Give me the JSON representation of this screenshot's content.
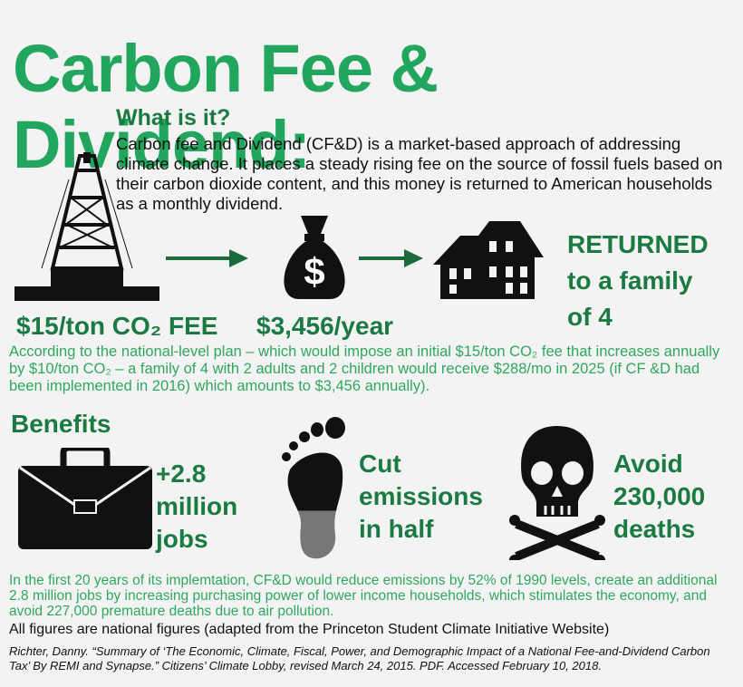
{
  "title": "Carbon Fee & Dividend:",
  "intro": {
    "heading": "What is it?",
    "text": "Carbon fee and Dividend (CF&D) is a market-based approach of addressing climate change. It places a steady rising fee on the source of fossil fuels based on their carbon dioxide content, and this money is returned to American households as a monthly dividend."
  },
  "flow": {
    "fee": "$15/ton CO₂ FEE",
    "amount": "$3,456/year",
    "returned": [
      "RETURNED",
      "to a family",
      "of 4"
    ]
  },
  "plan": "According to the national-level plan – which would impose an initial $15/ton CO₂ fee that increases annually by $10/ton CO₂ – a family of 4 with 2 adults and 2 children would receive $288/mo in 2025 (if CF &D had been implemented in 2016) which amounts to $3,456 annually).",
  "benefits": {
    "heading": "Benefits",
    "items": [
      [
        "+2.8",
        "million",
        "jobs"
      ],
      [
        "Cut",
        "emissions",
        "in half"
      ],
      [
        "Avoid",
        "230,000",
        "deaths"
      ]
    ]
  },
  "summary": "In the first 20 years of its implemtation, CF&D would reduce emissions by 52% of 1990 levels, create an additional 2.8 million jobs by increasing purchasing power of lower income households, which stimulates the economy, and avoid 227,000 premature deaths due to air pollution.",
  "note": "All figures are national figures (adapted from the Princeton Student Climate Initiative Website)",
  "citation": "Richter, Danny. “Summary of ‘The Economic, Climate, Fiscal, Power, and Demographic Impact of a National Fee-and-Dividend Carbon Tax’ By REMI and Synapse.” Citizens’ Climate Lobby, revised March 24, 2015. PDF. Accessed February 10, 2018."
}
